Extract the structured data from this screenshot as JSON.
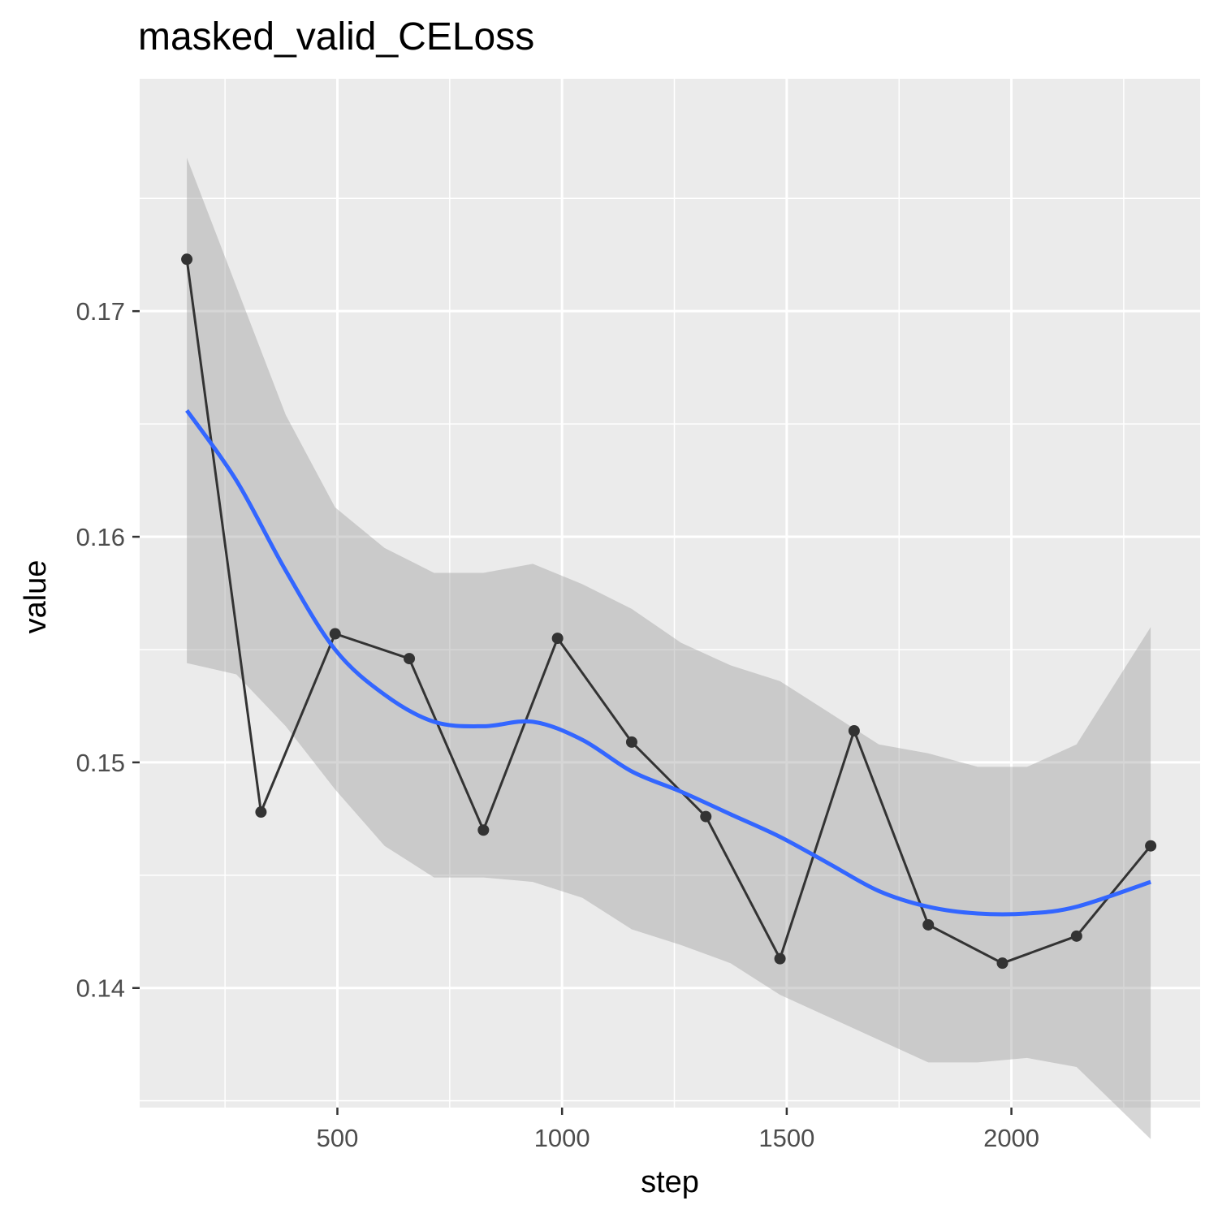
{
  "chart_data": {
    "type": "line",
    "title": "masked_valid_CELoss",
    "xlabel": "step",
    "ylabel": "value",
    "xlim": [
      60,
      2420
    ],
    "ylim": [
      0.1347,
      0.1803
    ],
    "x_ticks": [
      500,
      1000,
      1500,
      2000
    ],
    "y_ticks": [
      0.14,
      0.15,
      0.16,
      0.17
    ],
    "grid": true,
    "legend": "none",
    "colors": {
      "panel_background": "#ebebeb",
      "grid": "#ffffff",
      "series_line": "#333333",
      "smooth_line": "#3366ff",
      "confidence_band": "#cccccc"
    },
    "series": [
      {
        "values_x": [
          165,
          330,
          495,
          660,
          825,
          990,
          1155,
          1320,
          1485,
          1650,
          1815,
          1980,
          2145,
          2310
        ],
        "values_y": [
          0.1723,
          0.1478,
          0.1557,
          0.1546,
          0.147,
          0.1555,
          0.1509,
          0.1476,
          0.1413,
          0.1514,
          0.1428,
          0.1411,
          0.1423,
          0.1463
        ]
      }
    ],
    "smooth": {
      "x": [
        165,
        275,
        385,
        495,
        605,
        715,
        825,
        935,
        1045,
        1155,
        1265,
        1375,
        1485,
        1595,
        1705,
        1815,
        1925,
        2035,
        2145,
        2310
      ],
      "y": [
        0.1656,
        0.1625,
        0.1585,
        0.155,
        0.153,
        0.1518,
        0.1516,
        0.1518,
        0.151,
        0.1496,
        0.1487,
        0.1477,
        0.1467,
        0.1455,
        0.1443,
        0.1436,
        0.1433,
        0.1433,
        0.1436,
        0.1447
      ],
      "lower": [
        0.1544,
        0.1539,
        0.1516,
        0.1488,
        0.1463,
        0.1449,
        0.1449,
        0.1447,
        0.144,
        0.1426,
        0.1419,
        0.1411,
        0.1397,
        0.1387,
        0.1377,
        0.1367,
        0.1367,
        0.1369,
        0.1365,
        0.1333
      ],
      "upper": [
        0.1768,
        0.1711,
        0.1654,
        0.1613,
        0.1595,
        0.1584,
        0.1584,
        0.1588,
        0.1579,
        0.1568,
        0.1553,
        0.1543,
        0.1536,
        0.1522,
        0.1508,
        0.1504,
        0.1498,
        0.1498,
        0.1508,
        0.156
      ]
    }
  }
}
